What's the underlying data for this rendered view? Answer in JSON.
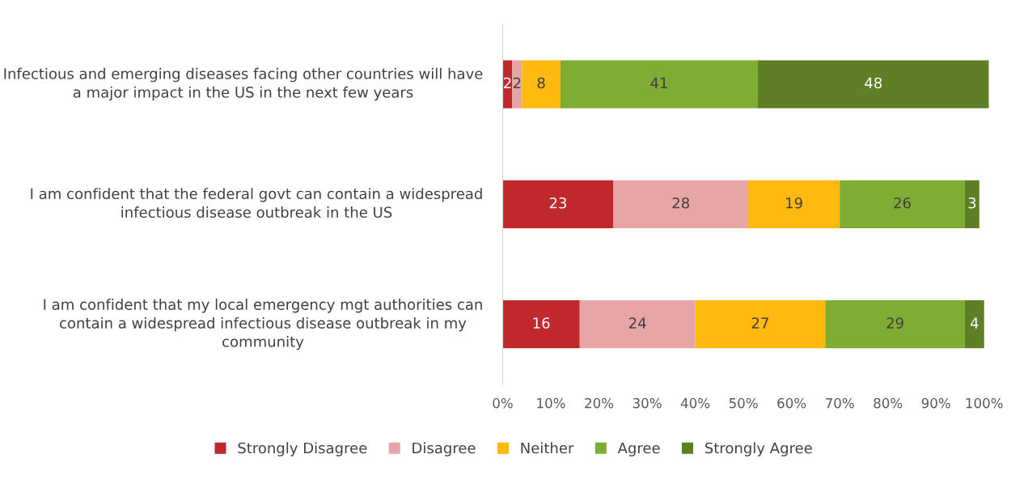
{
  "chart_data": {
    "type": "bar",
    "orientation": "horizontal",
    "stacked": true,
    "data_labels": true,
    "legend": "bottom",
    "grid": false,
    "tick_labels": "x",
    "categories": [
      "Infectious and emerging diseases facing other countries will have a major impact in the US in the next few years",
      "I am confident that the federal govt can contain a widespread infectious disease outbreak in the US",
      "I am confident that my local emergency mgt authorities can contain a widespread infectious disease outbreak in my community"
    ],
    "xlim": [
      0,
      101
    ],
    "xticks": [
      {
        "value": 0,
        "label": "0%"
      },
      {
        "value": 10,
        "label": "10%"
      },
      {
        "value": 20,
        "label": "20%"
      },
      {
        "value": 30,
        "label": "30%"
      },
      {
        "value": 40,
        "label": "40%"
      },
      {
        "value": 50,
        "label": "50%"
      },
      {
        "value": 60,
        "label": "60%"
      },
      {
        "value": 70,
        "label": "70%"
      },
      {
        "value": 80,
        "label": "80%"
      },
      {
        "value": 90,
        "label": "90%"
      },
      {
        "value": 100,
        "label": "100%"
      }
    ],
    "series": [
      {
        "name": "Strongly Disagree",
        "color": "#c0282d",
        "values": [
          2,
          23,
          16
        ]
      },
      {
        "name": "Disagree",
        "color": "#e8a5a6",
        "values": [
          2,
          28,
          24
        ]
      },
      {
        "name": "Neither",
        "color": "#ffb90f",
        "values": [
          8,
          19,
          27
        ]
      },
      {
        "name": "Agree",
        "color": "#7fad34",
        "values": [
          41,
          26,
          29
        ]
      },
      {
        "name": "Strongly Agree",
        "color": "#5f7f27",
        "values": [
          48,
          3,
          4
        ]
      }
    ]
  }
}
